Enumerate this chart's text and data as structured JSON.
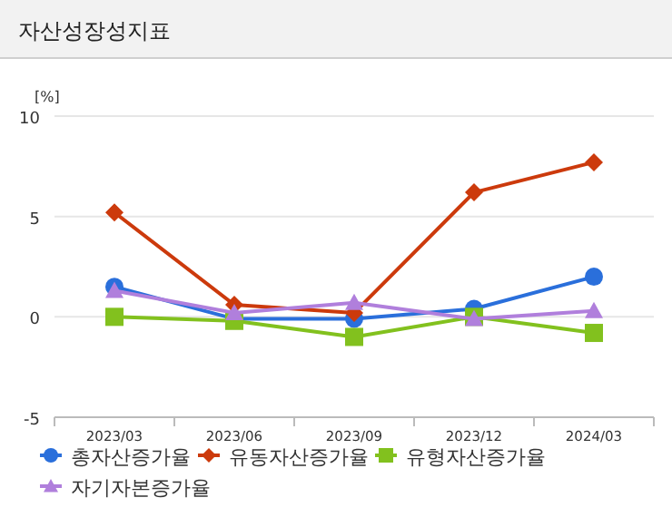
{
  "chart_data": {
    "type": "line",
    "title": "자산성장성지표",
    "ylabel": "[%]",
    "categories": [
      "2023/03",
      "2023/06",
      "2023/09",
      "2023/12",
      "2024/03"
    ],
    "series": [
      {
        "name": "총자산증가율",
        "color": "#2a6fdb",
        "marker": "circle",
        "values": [
          1.5,
          -0.1,
          -0.1,
          0.4,
          2.0
        ]
      },
      {
        "name": "유동자산증가율",
        "color": "#cc3a0c",
        "marker": "diamond",
        "values": [
          5.2,
          0.6,
          0.2,
          6.2,
          7.7
        ]
      },
      {
        "name": "유형자산증가율",
        "color": "#82c11e",
        "marker": "square",
        "values": [
          0.0,
          -0.2,
          -1.0,
          0.0,
          -0.8
        ]
      },
      {
        "name": "자기자본증가율",
        "color": "#b07fdc",
        "marker": "triangle",
        "values": [
          1.3,
          0.2,
          0.7,
          -0.1,
          0.3
        ]
      }
    ],
    "ylim": [
      -5,
      10
    ],
    "yticks": [
      -5,
      0,
      5,
      10
    ],
    "grid": "y",
    "legend": "bottom"
  }
}
